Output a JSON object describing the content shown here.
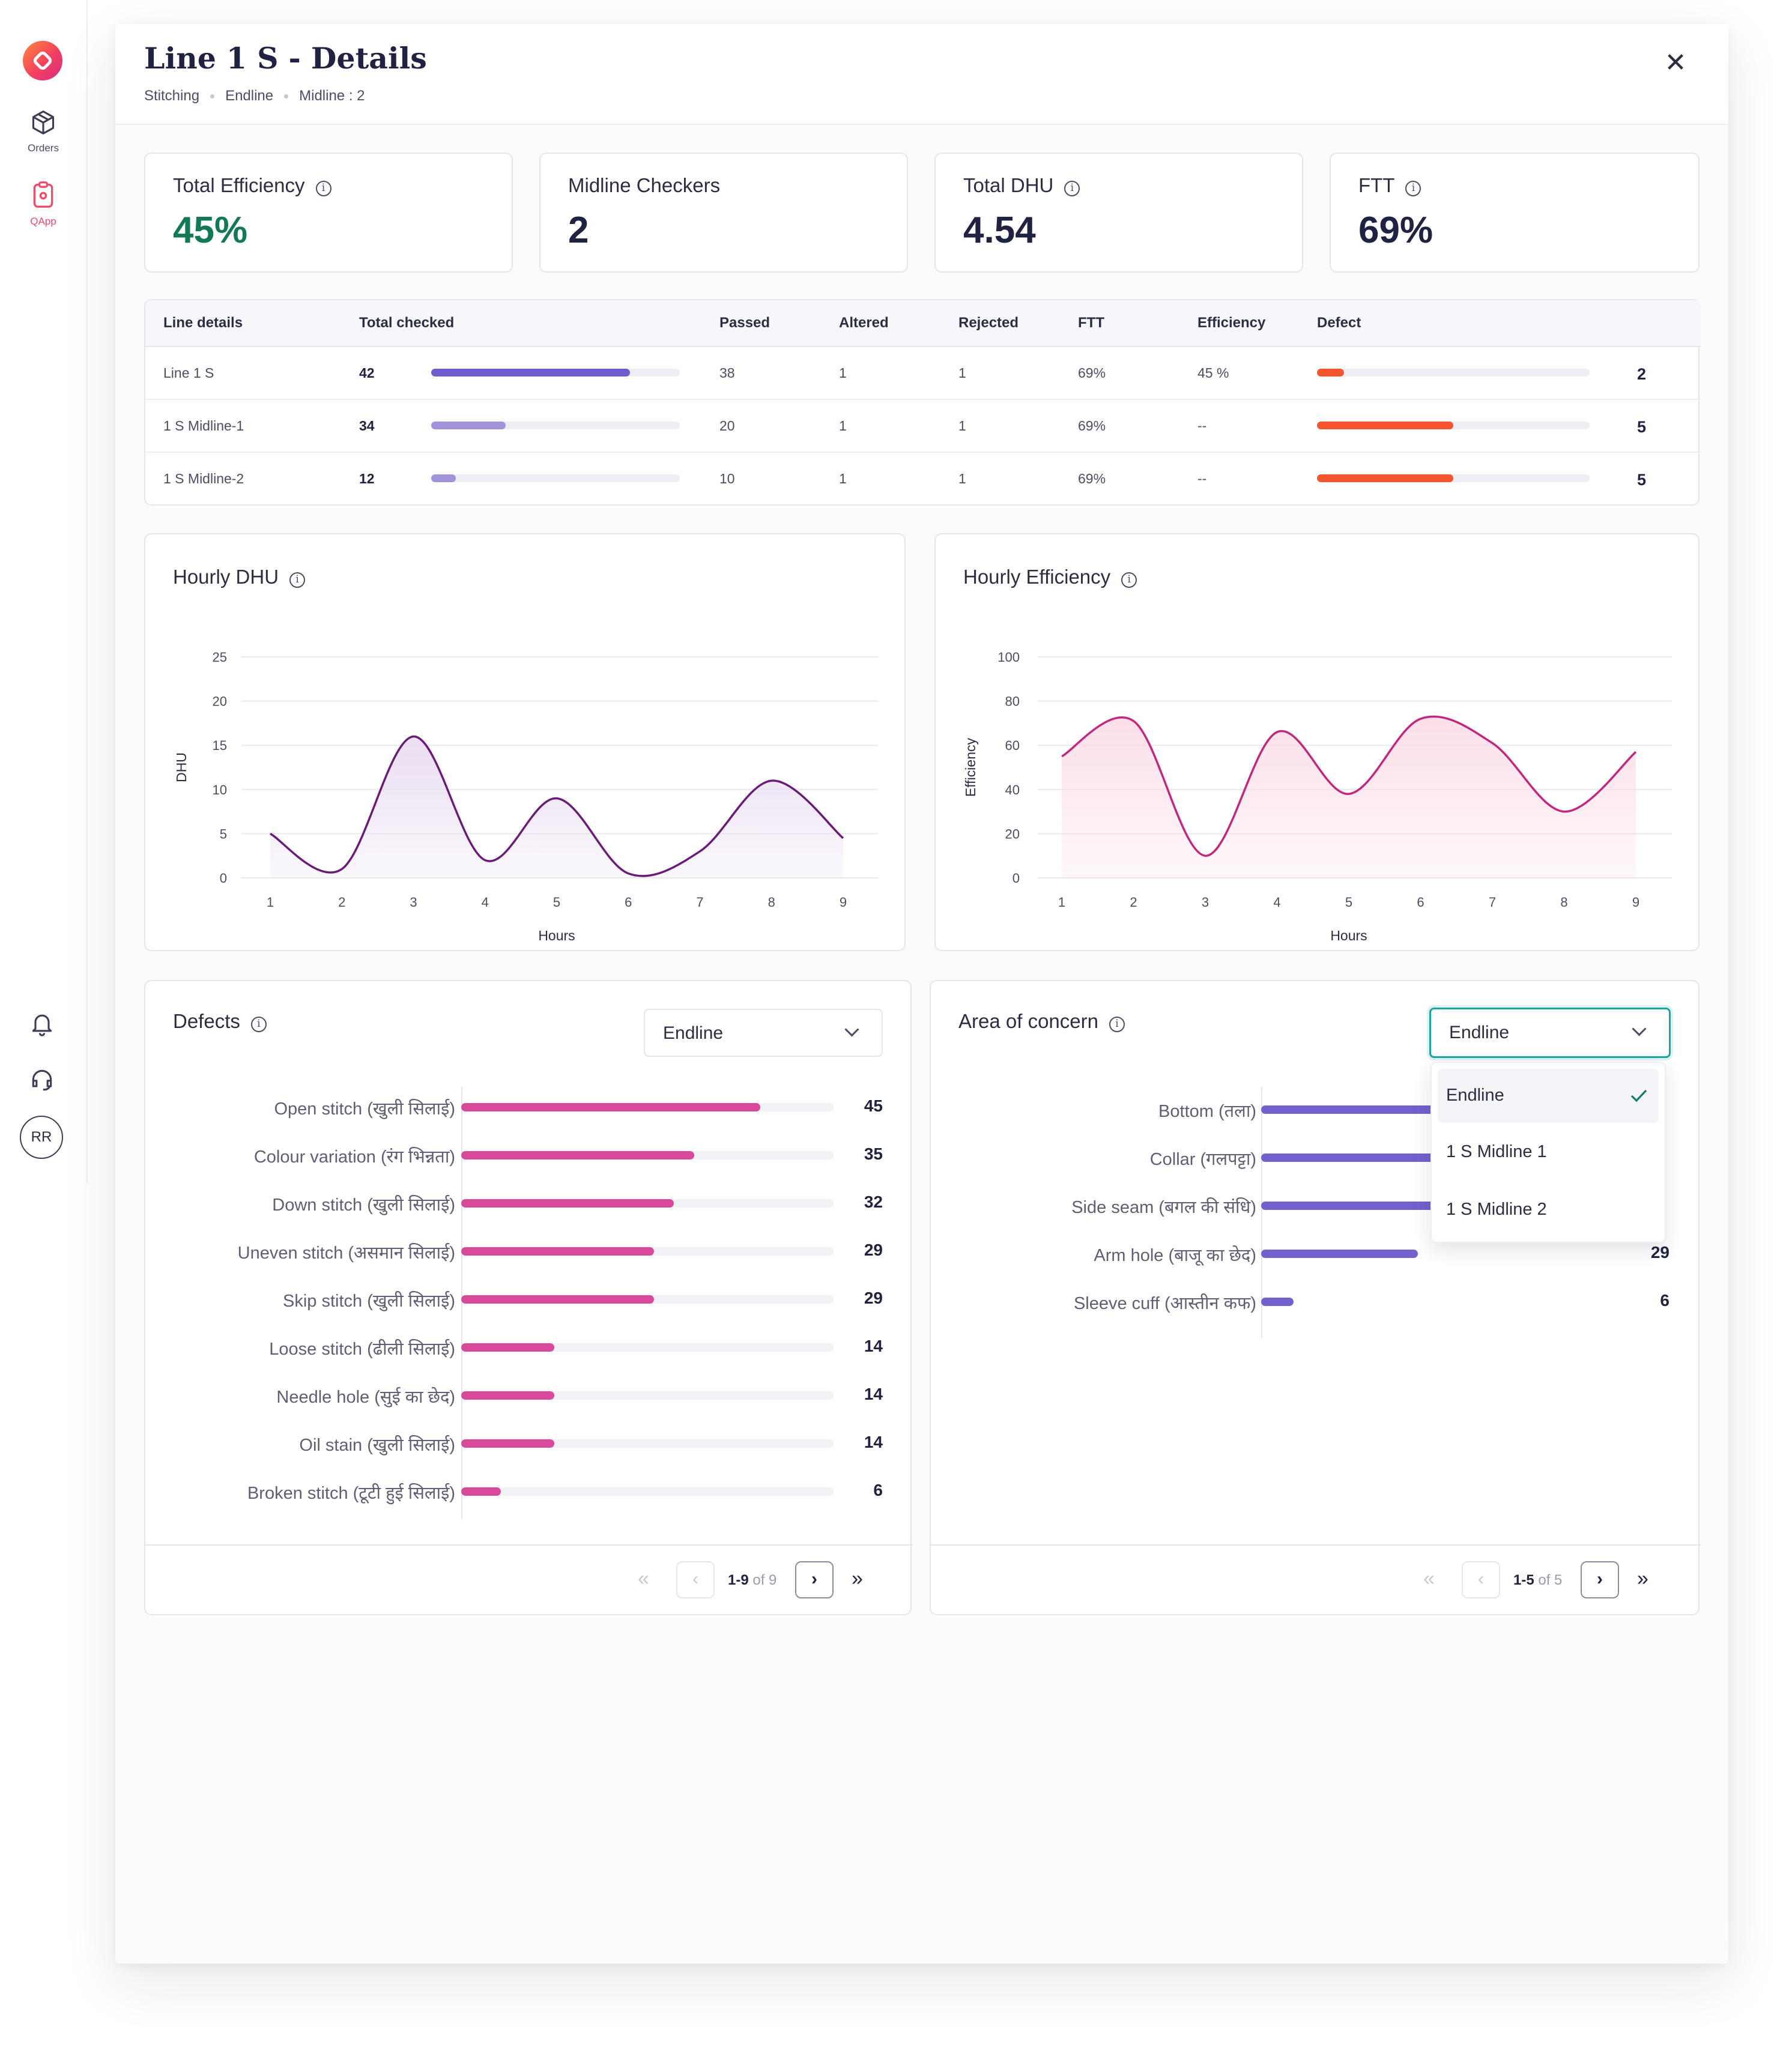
{
  "rail": {
    "nav": [
      {
        "label": "Orders",
        "icon": "box-icon"
      },
      {
        "label": "QApp",
        "icon": "clipboard-icon",
        "active": true
      }
    ],
    "avatar": "RR"
  },
  "header": {
    "title": "Line 1 S - Details",
    "breadcrumbs": [
      "Stitching",
      "Endline",
      "Midline : 2"
    ]
  },
  "kpis": [
    {
      "label": "Total Efficiency",
      "value": "45%",
      "color": "#127a52",
      "info": true
    },
    {
      "label": "Midline Checkers",
      "value": "2",
      "info": false
    },
    {
      "label": "Total DHU",
      "value": "4.54",
      "info": true
    },
    {
      "label": "FTT",
      "value": "69%",
      "info": true
    }
  ],
  "table": {
    "headers": [
      "Line details",
      "Total checked",
      "Passed",
      "Altered",
      "Rejected",
      "FTT",
      "Efficiency",
      "Defect"
    ],
    "rows": [
      {
        "line": "Line 1 S",
        "checked": "42",
        "checked_ratio": 0.8,
        "passed": "38",
        "altered": "1",
        "rejected": "1",
        "ftt": "69%",
        "efficiency": "45 %",
        "defect": "2",
        "defect_ratio": 0.1
      },
      {
        "line": "1 S Midline-1",
        "checked": "34",
        "checked_ratio": 0.3,
        "passed": "20",
        "altered": "1",
        "rejected": "1",
        "ftt": "69%",
        "efficiency": "--",
        "defect": "5",
        "defect_ratio": 0.5
      },
      {
        "line": "1 S Midline-2",
        "checked": "12",
        "checked_ratio": 0.1,
        "passed": "10",
        "altered": "1",
        "rejected": "1",
        "ftt": "69%",
        "efficiency": "--",
        "defect": "5",
        "defect_ratio": 0.5
      }
    ],
    "colors": {
      "checked_dark": "#6f5ccd",
      "checked_light": "#a192da",
      "defect": "#f4552f"
    }
  },
  "chart_data": [
    {
      "type": "line",
      "title": "Hourly DHU",
      "xlabel": "Hours",
      "ylabel": "DHU",
      "x": [
        1,
        2,
        3,
        4,
        5,
        6,
        7,
        8,
        9
      ],
      "series": [
        {
          "values": [
            5,
            1,
            16,
            2,
            9,
            0.5,
            3,
            11,
            4.5
          ]
        }
      ],
      "ylim": [
        0,
        25
      ],
      "yticks": [
        0,
        5,
        10,
        15,
        20,
        25
      ],
      "grid": true,
      "color": "#6a1b78",
      "fill": "#e9dcf1"
    },
    {
      "type": "line",
      "title": "Hourly Efficiency",
      "xlabel": "Hours",
      "ylabel": "Efficiency",
      "x": [
        1,
        2,
        3,
        4,
        5,
        6,
        7,
        8,
        9
      ],
      "series": [
        {
          "values": [
            55,
            71,
            10,
            66,
            38,
            72,
            61,
            30,
            57
          ]
        }
      ],
      "ylim": [
        0,
        100
      ],
      "yticks": [
        0,
        20,
        40,
        60,
        80,
        100
      ],
      "grid": true,
      "color": "#c2277d",
      "fill": "#fbdde8"
    }
  ],
  "defects": {
    "title": "Defects",
    "filter": "Endline",
    "max": 56,
    "color": "#d9489a",
    "items": [
      {
        "label": "Open stitch (खुली सिलाई)",
        "value": 45
      },
      {
        "label": "Colour variation (रंग भिन्नता)",
        "value": 35
      },
      {
        "label": "Down stitch (खुली सिलाई)",
        "value": 32
      },
      {
        "label": "Uneven stitch (असमान सिलाई)",
        "value": 29
      },
      {
        "label": "Skip stitch (खुली सिलाई)",
        "value": 29
      },
      {
        "label": "Loose stitch (ढीली सिलाई)",
        "value": 14
      },
      {
        "label": "Needle hole (सुई का छेद)",
        "value": 14
      },
      {
        "label": "Oil stain (खुली सिलाई)",
        "value": 14
      },
      {
        "label": "Broken stitch (टूटी हुई सिलाई)",
        "value": 6
      }
    ],
    "pager": {
      "range": "1-9",
      "of": "of 9"
    }
  },
  "concern": {
    "title": "Area of concern",
    "filter": "Endline",
    "max": 50,
    "color": "#7360cc",
    "items": [
      {
        "label": "Bottom (तला)",
        "value": 45,
        "value_text": ""
      },
      {
        "label": "Collar (गलपट्टा)",
        "value": 40,
        "value_text": ""
      },
      {
        "label": "Side seam (बगल की संधि)",
        "value": 40,
        "value_text": ""
      },
      {
        "label": "Arm hole (बाजू का छेद)",
        "value": 29,
        "value_text": "29"
      },
      {
        "label": "Sleeve cuff (आस्तीन कफ)",
        "value": 6,
        "value_text": "6"
      }
    ],
    "menu": [
      {
        "label": "Endline",
        "selected": true
      },
      {
        "label": "1 S Midline 1",
        "selected": false
      },
      {
        "label": "1 S Midline 2",
        "selected": false
      }
    ],
    "pager": {
      "range": "1-5",
      "of": "of 5"
    }
  }
}
